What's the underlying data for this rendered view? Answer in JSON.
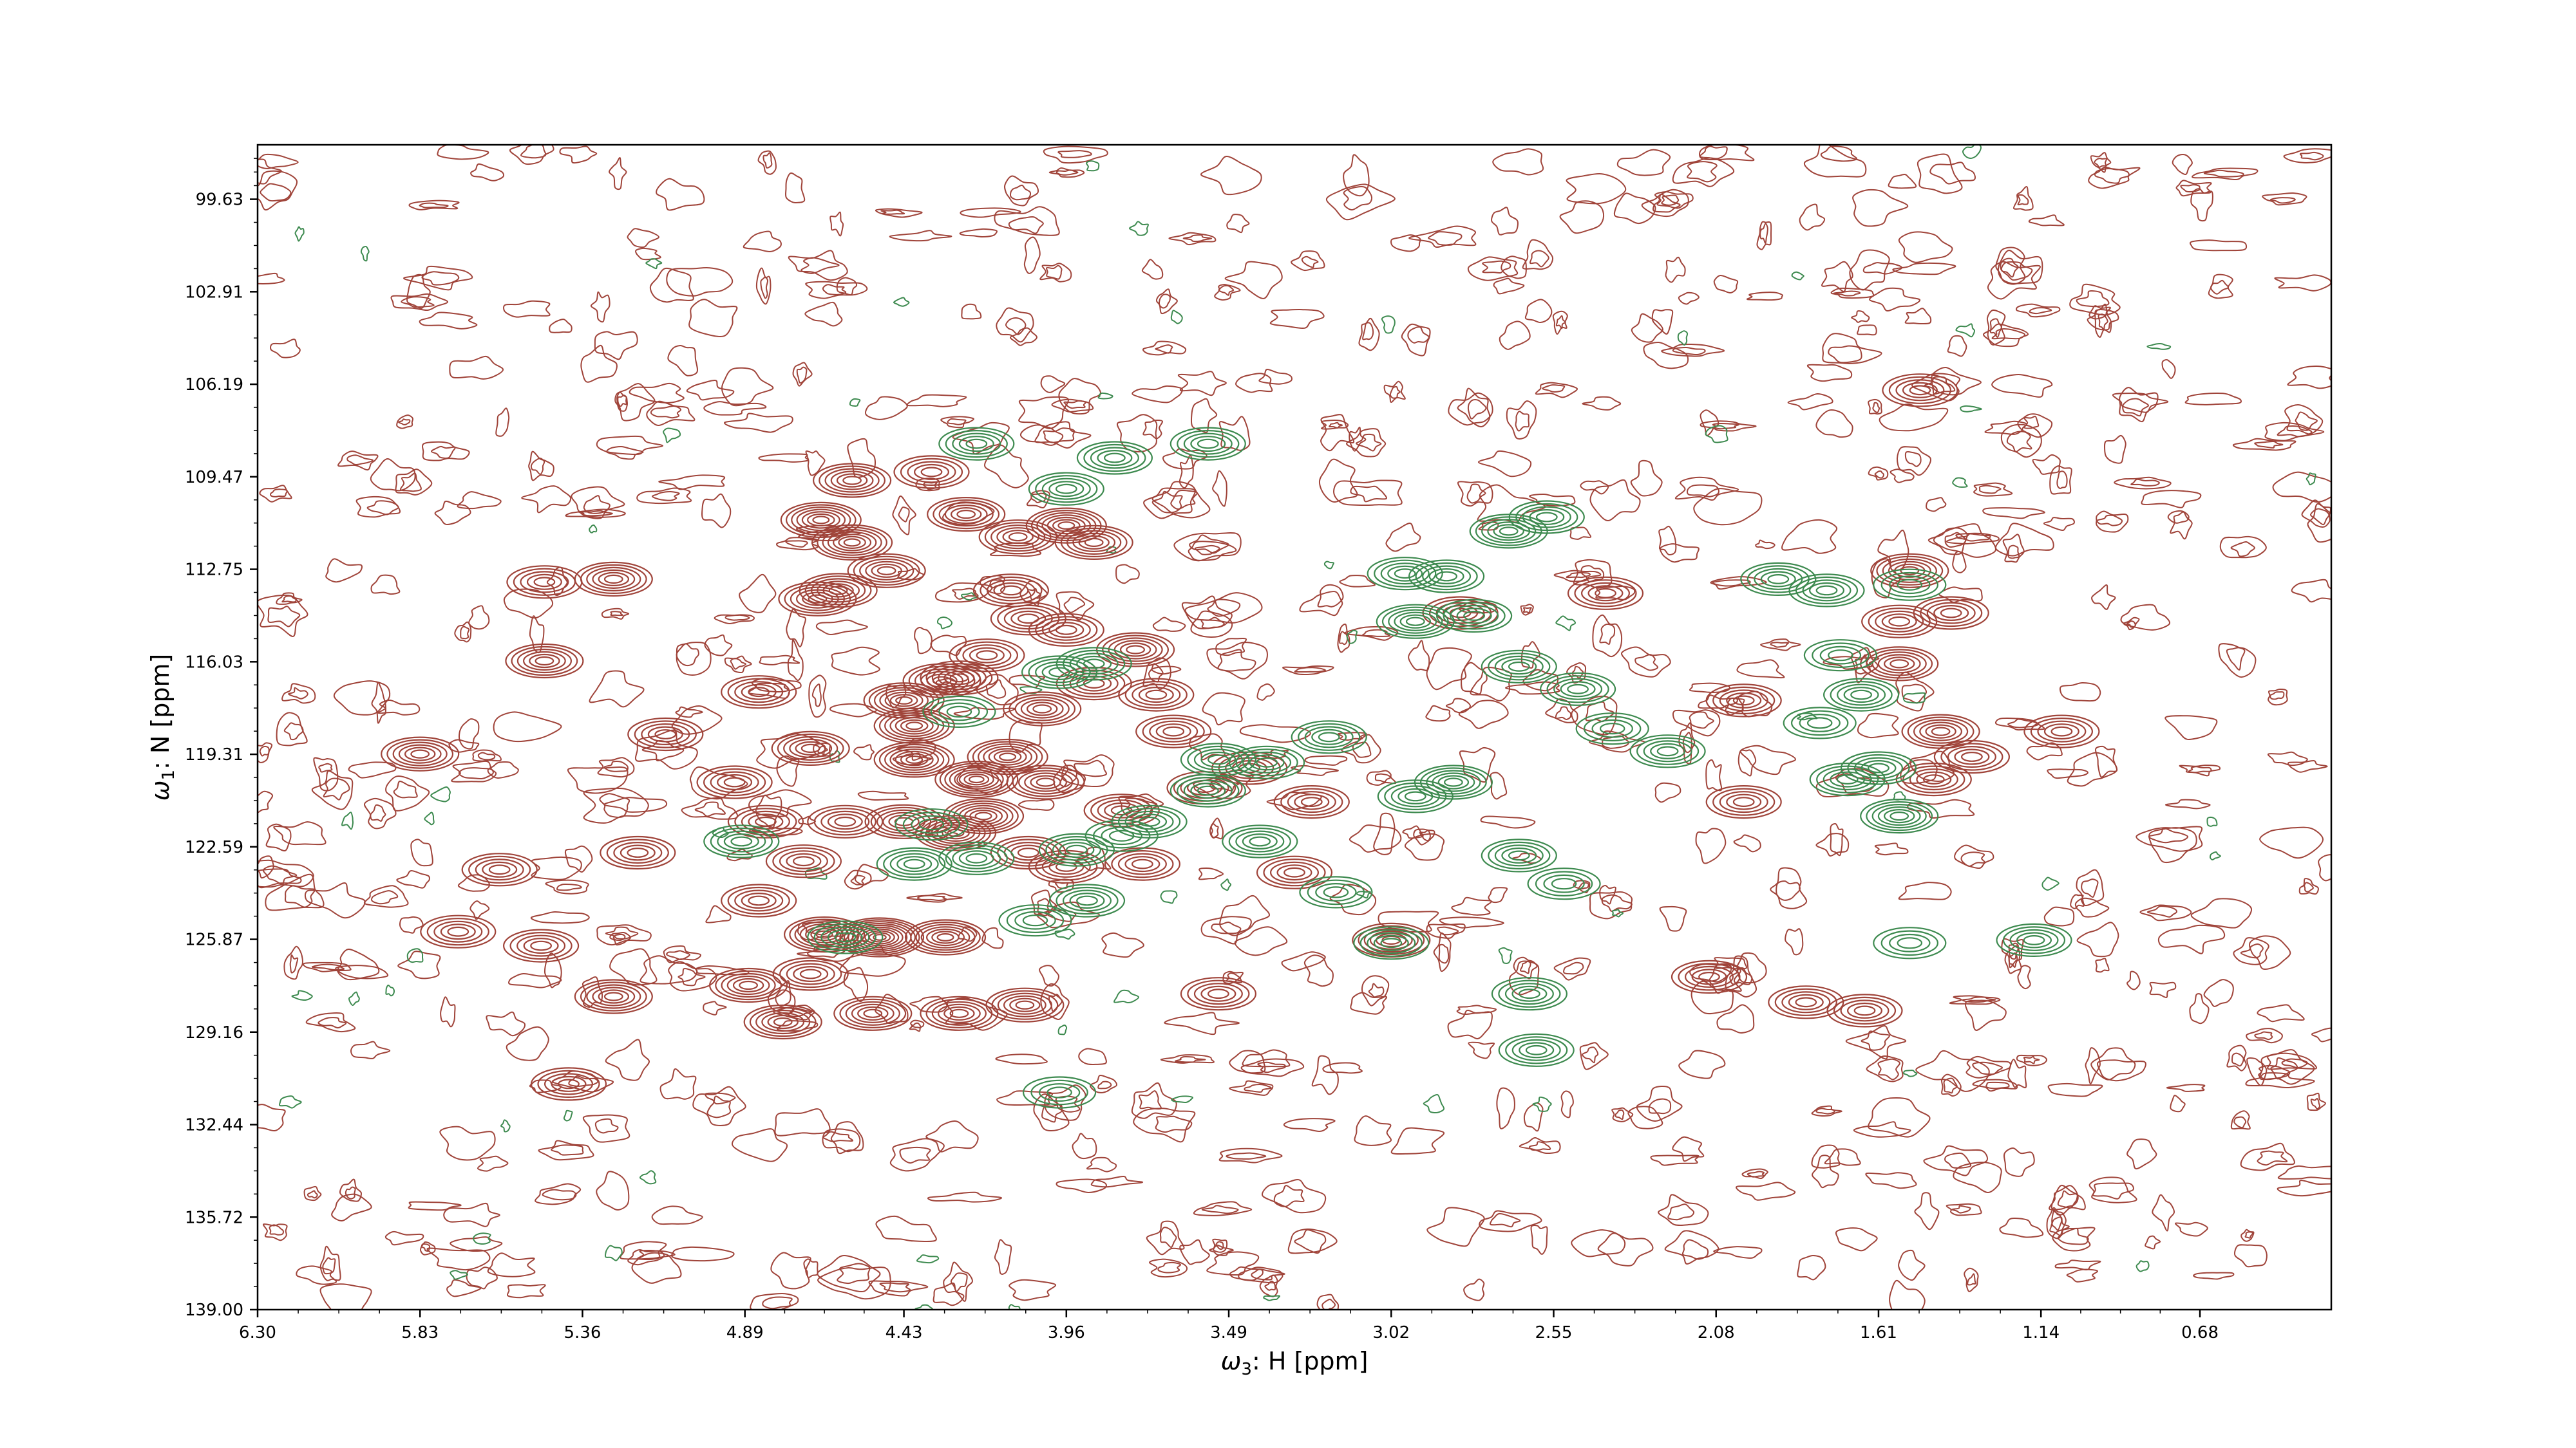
{
  "chart_data": {
    "type": "contour",
    "xlabel": {
      "symbol": "ω",
      "subscript": "3",
      "text": ": H [ppm]"
    },
    "ylabel": {
      "symbol": "ω",
      "subscript": "1",
      "text": ": N [ppm]"
    },
    "xlim": [
      6.3,
      0.3
    ],
    "ylim": [
      139.0,
      97.7
    ],
    "x_axis_inverted": true,
    "y_axis_inverted": true,
    "x_ticks": [
      6.3,
      5.83,
      5.36,
      4.89,
      4.43,
      3.96,
      3.49,
      3.02,
      2.55,
      2.08,
      1.61,
      1.14,
      0.68
    ],
    "x_tick_labels": [
      "6.30",
      "5.83",
      "5.36",
      "4.89",
      "4.43",
      "3.96",
      "3.49",
      "3.02",
      "2.55",
      "2.08",
      "1.61",
      "1.14",
      "0.68"
    ],
    "y_ticks": [
      99.63,
      102.91,
      106.19,
      109.47,
      112.75,
      116.03,
      119.31,
      122.59,
      125.87,
      129.16,
      132.44,
      135.72,
      139.0
    ],
    "y_tick_labels": [
      "99.63",
      "102.91",
      "106.19",
      "109.47",
      "112.75",
      "116.03",
      "119.31",
      "122.59",
      "125.87",
      "129.16",
      "132.44",
      "135.72",
      "139.00"
    ],
    "grid": false,
    "colors": {
      "positive": "#a0443a",
      "negative": "#3d8a4f"
    },
    "series": [
      {
        "sign": "positive",
        "peaks": [
          [
            5.83,
            119.3,
            6
          ],
          [
            5.47,
            113.2,
            5
          ],
          [
            5.27,
            113.1,
            6
          ],
          [
            5.47,
            116.0,
            6
          ],
          [
            4.92,
            120.3,
            5
          ],
          [
            4.83,
            121.7,
            5
          ],
          [
            4.7,
            119.1,
            6
          ],
          [
            4.67,
            111.0,
            7
          ],
          [
            4.58,
            111.8,
            7
          ],
          [
            4.62,
            113.5,
            6
          ],
          [
            4.48,
            112.8,
            6
          ],
          [
            4.58,
            109.6,
            6
          ],
          [
            4.43,
            117.4,
            7
          ],
          [
            4.4,
            118.3,
            7
          ],
          [
            4.32,
            116.7,
            6
          ],
          [
            4.4,
            119.5,
            7
          ],
          [
            4.22,
            120.2,
            8
          ],
          [
            4.13,
            119.4,
            7
          ],
          [
            4.2,
            121.5,
            7
          ],
          [
            4.28,
            122.1,
            7
          ],
          [
            4.43,
            121.7,
            6
          ],
          [
            4.6,
            121.7,
            5
          ],
          [
            4.72,
            123.1,
            5
          ],
          [
            4.85,
            124.5,
            5
          ],
          [
            4.66,
            125.7,
            7
          ],
          [
            4.5,
            125.8,
            10
          ],
          [
            4.31,
            125.8,
            7
          ],
          [
            4.7,
            127.1,
            5
          ],
          [
            4.88,
            127.5,
            6
          ],
          [
            4.78,
            128.8,
            6
          ],
          [
            4.52,
            128.5,
            6
          ],
          [
            4.27,
            128.5,
            6
          ],
          [
            4.08,
            128.2,
            6
          ],
          [
            4.35,
            109.3,
            5
          ],
          [
            4.25,
            110.8,
            6
          ],
          [
            4.1,
            111.6,
            6
          ],
          [
            3.96,
            111.2,
            7
          ],
          [
            3.88,
            111.8,
            6
          ],
          [
            4.12,
            113.5,
            5
          ],
          [
            3.96,
            114.9,
            5
          ],
          [
            3.88,
            116.8,
            5
          ],
          [
            3.76,
            115.6,
            6
          ],
          [
            3.7,
            117.2,
            5
          ],
          [
            3.65,
            118.5,
            5
          ],
          [
            3.56,
            120.5,
            5
          ],
          [
            3.43,
            119.8,
            5
          ],
          [
            3.8,
            121.3,
            5
          ],
          [
            3.74,
            123.2,
            5
          ],
          [
            4.02,
            120.3,
            6
          ],
          [
            4.07,
            122.8,
            5
          ],
          [
            3.52,
            127.8,
            5
          ],
          [
            3.25,
            121.0,
            5
          ],
          [
            3.02,
            125.9,
            6
          ],
          [
            2.82,
            114.3,
            5
          ],
          [
            2.4,
            113.6,
            5
          ],
          [
            2.0,
            117.4,
            5
          ],
          [
            2.0,
            121.0,
            5
          ],
          [
            1.49,
            106.4,
            5
          ],
          [
            1.52,
            112.8,
            6
          ],
          [
            1.55,
            114.6,
            5
          ],
          [
            1.55,
            116.1,
            6
          ],
          [
            1.4,
            114.3,
            5
          ],
          [
            1.34,
            119.4,
            5
          ],
          [
            1.43,
            118.5,
            6
          ],
          [
            1.08,
            118.5,
            5
          ],
          [
            1.45,
            120.2,
            5
          ],
          [
            1.82,
            128.1,
            5
          ],
          [
            1.65,
            128.4,
            5
          ],
          [
            2.1,
            127.2,
            5
          ],
          [
            5.27,
            127.9,
            6
          ],
          [
            5.48,
            126.1,
            5
          ],
          [
            5.4,
            131.0,
            5
          ],
          [
            5.72,
            125.6,
            5
          ],
          [
            5.2,
            122.8,
            5
          ],
          [
            5.6,
            123.4,
            5
          ],
          [
            5.12,
            118.6,
            5
          ],
          [
            4.68,
            113.8,
            6
          ],
          [
            4.85,
            117.1,
            5
          ],
          [
            4.27,
            116.6,
            6
          ],
          [
            4.19,
            115.8,
            5
          ],
          [
            4.07,
            114.5,
            5
          ],
          [
            4.03,
            117.7,
            6
          ],
          [
            3.96,
            123.3,
            5
          ],
          [
            3.3,
            123.5,
            5
          ]
        ]
      },
      {
        "sign": "negative",
        "peaks": [
          [
            4.22,
            108.3,
            5
          ],
          [
            3.82,
            108.8,
            5
          ],
          [
            3.55,
            108.3,
            5
          ],
          [
            3.96,
            109.9,
            5
          ],
          [
            3.88,
            116.1,
            5
          ],
          [
            3.98,
            116.4,
            5
          ],
          [
            3.93,
            122.7,
            5
          ],
          [
            3.55,
            120.6,
            5
          ],
          [
            3.4,
            122.4,
            5
          ],
          [
            3.52,
            119.5,
            5
          ],
          [
            3.38,
            119.6,
            5
          ],
          [
            2.98,
            112.9,
            5
          ],
          [
            2.86,
            113.0,
            5
          ],
          [
            2.95,
            114.6,
            6
          ],
          [
            2.78,
            114.4,
            5
          ],
          [
            2.68,
            111.4,
            6
          ],
          [
            2.57,
            110.9,
            5
          ],
          [
            2.65,
            116.2,
            5
          ],
          [
            2.48,
            117.0,
            5
          ],
          [
            2.38,
            118.4,
            4
          ],
          [
            2.22,
            119.2,
            5
          ],
          [
            1.9,
            113.1,
            5
          ],
          [
            1.76,
            113.5,
            5
          ],
          [
            1.72,
            115.8,
            4
          ],
          [
            1.52,
            113.3,
            4
          ],
          [
            1.61,
            119.8,
            5
          ],
          [
            1.7,
            120.2,
            5
          ],
          [
            1.78,
            118.2,
            4
          ],
          [
            1.66,
            117.2,
            5
          ],
          [
            1.55,
            121.5,
            6
          ],
          [
            1.52,
            126.0,
            4
          ],
          [
            1.16,
            125.9,
            5
          ],
          [
            2.84,
            120.3,
            6
          ],
          [
            2.95,
            120.8,
            5
          ],
          [
            3.2,
            118.7,
            5
          ],
          [
            2.65,
            122.9,
            5
          ],
          [
            2.52,
            123.9,
            4
          ],
          [
            2.62,
            127.8,
            5
          ],
          [
            2.6,
            129.8,
            5
          ],
          [
            3.02,
            126.0,
            5
          ],
          [
            3.18,
            124.2,
            4
          ],
          [
            3.9,
            124.5,
            5
          ],
          [
            4.05,
            125.2,
            4
          ],
          [
            4.22,
            123.0,
            5
          ],
          [
            4.4,
            123.2,
            5
          ],
          [
            4.35,
            121.8,
            4
          ],
          [
            4.6,
            125.8,
            5
          ],
          [
            3.72,
            121.7,
            5
          ],
          [
            3.8,
            122.2,
            4
          ],
          [
            4.27,
            117.8,
            4
          ],
          [
            4.9,
            122.4,
            5
          ],
          [
            3.98,
            131.3,
            4
          ]
        ]
      }
    ]
  }
}
